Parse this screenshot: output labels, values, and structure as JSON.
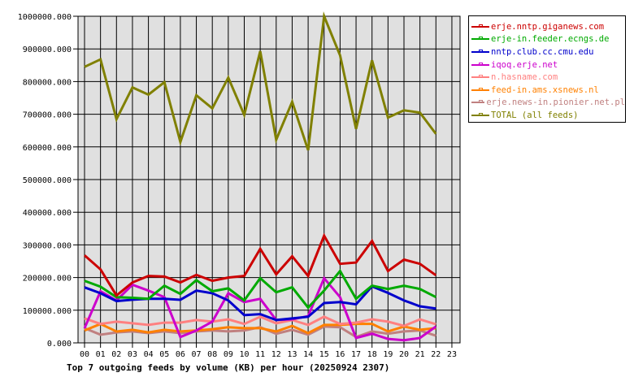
{
  "chart_data": {
    "type": "line",
    "title": "Top 7 outgoing feeds by volume (KB) per hour (20250924 2307)",
    "xlabel": "",
    "ylabel": "",
    "ylim": [
      0,
      1000000
    ],
    "grid": true,
    "legend_position": "right",
    "x": [
      "00",
      "01",
      "02",
      "03",
      "04",
      "05",
      "06",
      "07",
      "08",
      "09",
      "10",
      "11",
      "12",
      "13",
      "14",
      "15",
      "16",
      "17",
      "18",
      "19",
      "20",
      "21",
      "22",
      "23"
    ],
    "y_ticks": [
      "0.000",
      "100000.000",
      "200000.000",
      "300000.000",
      "400000.000",
      "500000.000",
      "600000.000",
      "700000.000",
      "800000.000",
      "900000.000",
      "1000000.000"
    ],
    "series": [
      {
        "name": "erje.nntp.giganews.com",
        "color": "#cc0000",
        "values": [
          268000,
          225000,
          145000,
          185000,
          205000,
          203000,
          185000,
          208000,
          190000,
          200000,
          205000,
          288000,
          210000,
          265000,
          205000,
          328000,
          242000,
          246000,
          312000,
          220000,
          255000,
          242000,
          207000
        ]
      },
      {
        "name": "erje-in.feeder.ecngs.de",
        "color": "#00aa00",
        "values": [
          190000,
          172000,
          140000,
          138000,
          135000,
          175000,
          150000,
          192000,
          158000,
          167000,
          130000,
          198000,
          155000,
          170000,
          108000,
          160000,
          220000,
          135000,
          175000,
          165000,
          175000,
          165000,
          140000
        ]
      },
      {
        "name": "nntp.club.cc.cmu.edu",
        "color": "#0000cc",
        "values": [
          170000,
          152000,
          128000,
          132000,
          135000,
          135000,
          132000,
          160000,
          152000,
          130000,
          85000,
          88000,
          70000,
          75000,
          80000,
          122000,
          125000,
          118000,
          173000,
          153000,
          130000,
          112000,
          105000
        ]
      },
      {
        "name": "iqoq.erje.net",
        "color": "#cc00cc",
        "values": [
          45000,
          158000,
          130000,
          178000,
          160000,
          140000,
          18000,
          38000,
          65000,
          152000,
          125000,
          135000,
          70000,
          72000,
          82000,
          198000,
          140000,
          15000,
          28000,
          12000,
          8000,
          15000,
          50000
        ]
      },
      {
        "name": "n.hasname.com",
        "color": "#ff8080",
        "values": [
          75000,
          58000,
          65000,
          60000,
          55000,
          62000,
          62000,
          70000,
          65000,
          72000,
          58000,
          80000,
          60000,
          70000,
          55000,
          80000,
          58000,
          62000,
          72000,
          65000,
          52000,
          72000,
          57000
        ]
      },
      {
        "name": "feed-in.ams.xsnews.nl",
        "color": "#ff8000",
        "values": [
          38000,
          58000,
          35000,
          40000,
          32000,
          40000,
          35000,
          38000,
          42000,
          48000,
          45000,
          45000,
          35000,
          52000,
          30000,
          55000,
          55000,
          58000,
          58000,
          35000,
          50000,
          40000,
          45000
        ]
      },
      {
        "name": "erje.news-in.pionier.net.pl",
        "color": "#c08080",
        "values": [
          45000,
          25000,
          32000,
          35000,
          30000,
          35000,
          30000,
          35000,
          38000,
          35000,
          38000,
          48000,
          28000,
          40000,
          25000,
          50000,
          48000,
          18000,
          35000,
          28000,
          35000,
          38000,
          22000
        ]
      },
      {
        "name": "TOTAL (all feeds)",
        "color": "#808000",
        "values": [
          845000,
          868000,
          685000,
          782000,
          760000,
          798000,
          615000,
          758000,
          718000,
          812000,
          698000,
          893000,
          622000,
          738000,
          590000,
          1000000,
          880000,
          655000,
          865000,
          690000,
          712000,
          705000,
          640000
        ]
      }
    ]
  }
}
